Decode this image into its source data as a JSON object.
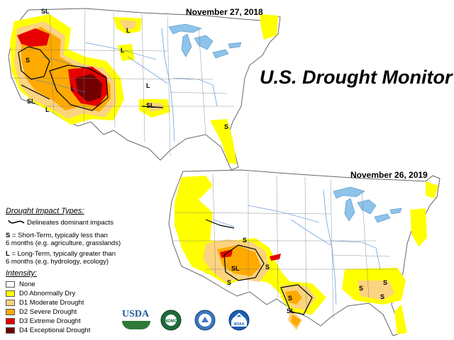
{
  "title": "U.S. Drought Monitor",
  "maps": [
    {
      "date": "November 27, 2018"
    },
    {
      "date": "November 26, 2019"
    }
  ],
  "legend": {
    "impact_heading": "Drought Impact Types:",
    "delineates": "Delineates dominant impacts",
    "s_key": "S",
    "s_text_1": " = Short-Term, typically less than",
    "s_text_2": "6 months (e.g. agriculture, grasslands)",
    "l_key": "L",
    "l_text_1": " = Long-Term, typically greater than",
    "l_text_2": "6 months (e.g. hydrology, ecology)",
    "intensity_heading": "Intensity:",
    "items": [
      {
        "label": "None",
        "color": "#ffffff"
      },
      {
        "label": "D0 Abnormally Dry",
        "color": "#ffff00"
      },
      {
        "label": "D1 Moderate Drought",
        "color": "#fcd37f"
      },
      {
        "label": "D2 Severe Drought",
        "color": "#ffaa00"
      },
      {
        "label": "D3 Extreme Drought",
        "color": "#e60000"
      },
      {
        "label": "D4 Exceptional Drought",
        "color": "#730000"
      }
    ]
  },
  "map_labels_2018": [
    "SL",
    "L",
    "L",
    "S",
    "L",
    "L",
    "SL",
    "L",
    "SL",
    "S"
  ],
  "map_labels_2019": [
    "S",
    "SL",
    "S",
    "S",
    "SL",
    "S",
    "S",
    "S",
    "S"
  ],
  "logos": {
    "usda": "USDA",
    "ndmc": "NDMC",
    "noaa": "NOAA"
  }
}
